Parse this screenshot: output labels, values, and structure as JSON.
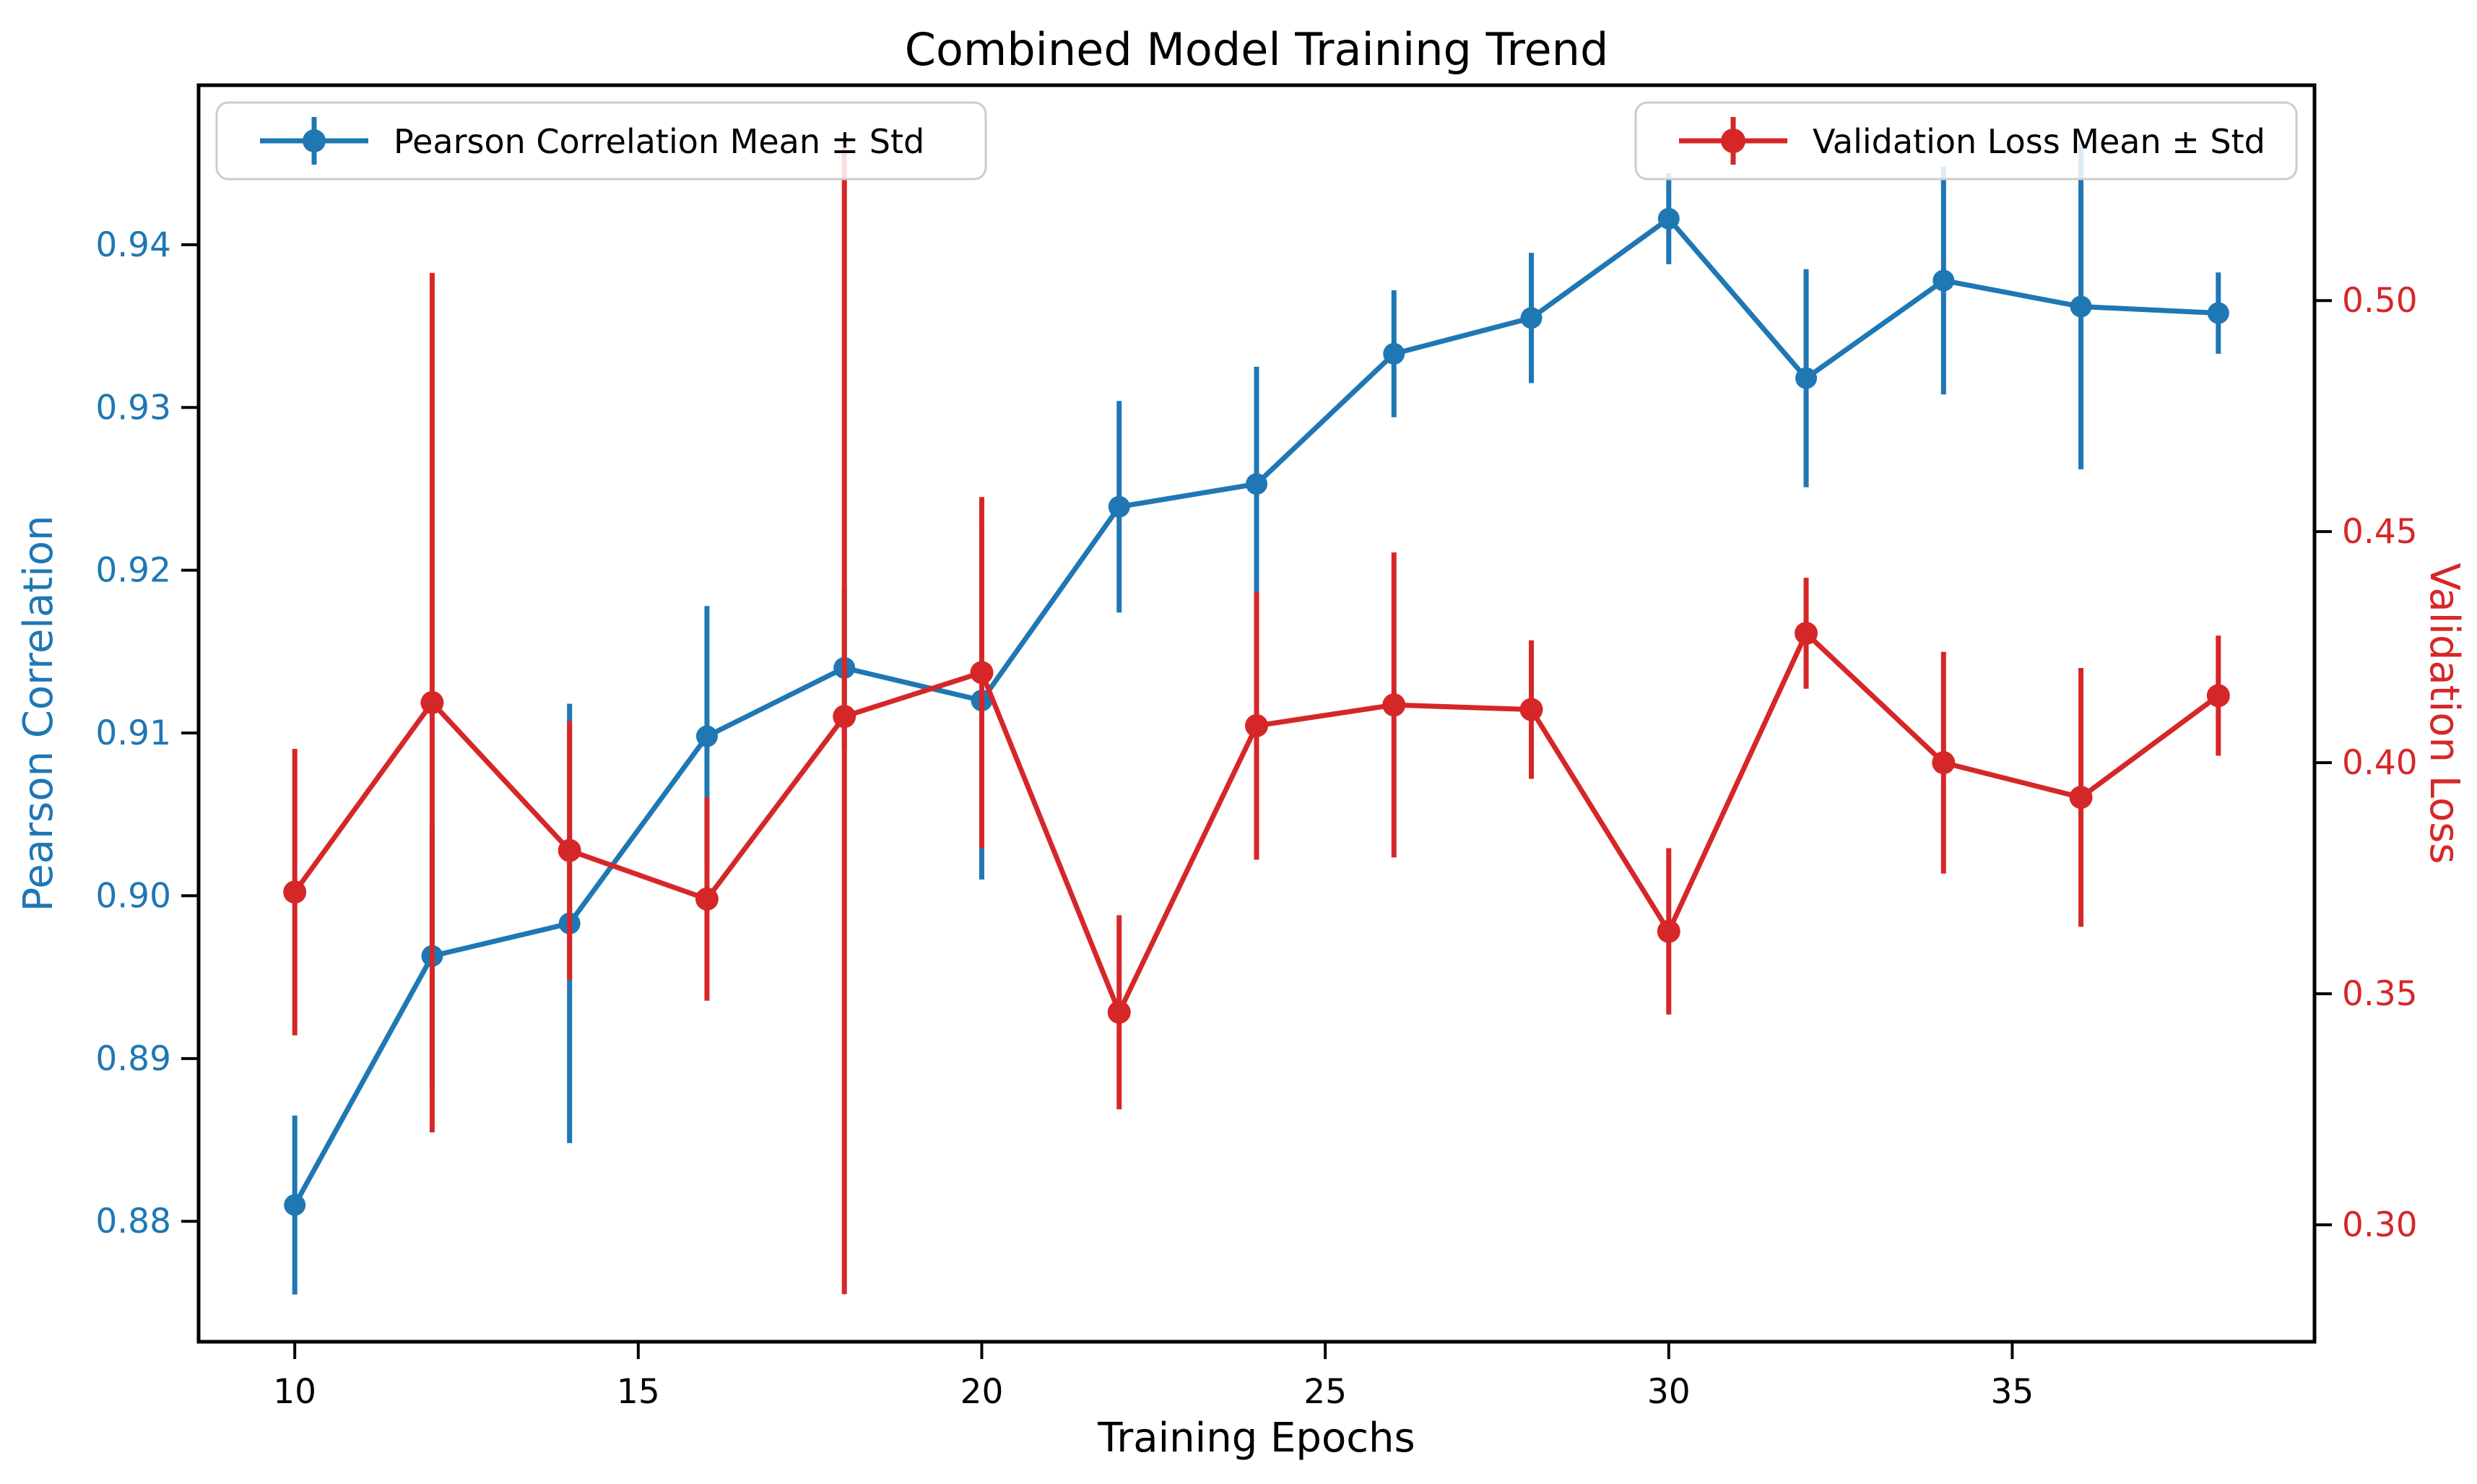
{
  "title": "Combined Model Training Trend",
  "colors": {
    "pearson": "#1f77b4",
    "loss": "#d62728",
    "spine": "#000000",
    "tick": "#000000",
    "legend_border": "#cccccc",
    "background": "#ffffff"
  },
  "legend": {
    "left_label": "Pearson Correlation Mean ± Std",
    "right_label": "Validation Loss Mean ± Std"
  },
  "chart_data": {
    "type": "line",
    "title": "Combined Model Training Trend",
    "xlabel": "Training Epochs",
    "ylabel_left": "Pearson Correlation",
    "ylabel_right": "Validation Loss",
    "x": [
      10,
      12,
      14,
      16,
      18,
      20,
      22,
      24,
      26,
      28,
      30,
      32,
      34,
      36,
      38
    ],
    "series": [
      {
        "name": "Pearson Correlation Mean ± Std",
        "axis": "left",
        "color": "#1f77b4",
        "marker_radius": 15,
        "values": [
          0.881,
          0.8963,
          0.8983,
          0.9098,
          0.914,
          0.912,
          0.9239,
          0.9253,
          0.9333,
          0.9355,
          0.9416,
          0.9318,
          0.9378,
          0.9362,
          0.9358
        ],
        "std": [
          0.0055,
          0.008,
          0.0135,
          0.008,
          0.005,
          0.011,
          0.0065,
          0.0072,
          0.0039,
          0.004,
          0.0028,
          0.0067,
          0.007,
          0.01,
          0.0025
        ]
      },
      {
        "name": "Validation Loss Mean ± Std",
        "axis": "right",
        "color": "#d62728",
        "marker_radius": 16,
        "values": [
          0.372,
          0.413,
          0.381,
          0.3705,
          0.41,
          0.4195,
          0.346,
          0.408,
          0.4125,
          0.4115,
          0.3635,
          0.428,
          0.4,
          0.3925,
          0.4145
        ],
        "std": [
          0.031,
          0.093,
          0.028,
          0.022,
          0.125,
          0.038,
          0.021,
          0.029,
          0.033,
          0.015,
          0.018,
          0.012,
          0.024,
          0.028,
          0.013
        ]
      }
    ],
    "x_ticks": [
      10,
      15,
      20,
      25,
      30,
      35
    ],
    "y_ticks_left": [
      0.88,
      0.89,
      0.9,
      0.91,
      0.92,
      0.93,
      0.94
    ],
    "y_ticks_right": [
      0.3,
      0.35,
      0.4,
      0.45,
      0.5
    ],
    "xlim": [
      8.6,
      39.4
    ],
    "ylim_left": [
      0.8726,
      0.9498
    ],
    "ylim_right": [
      0.2747,
      0.5466
    ],
    "grid": false,
    "legend_position_left_series": "upper left",
    "legend_position_right_series": "upper right"
  }
}
